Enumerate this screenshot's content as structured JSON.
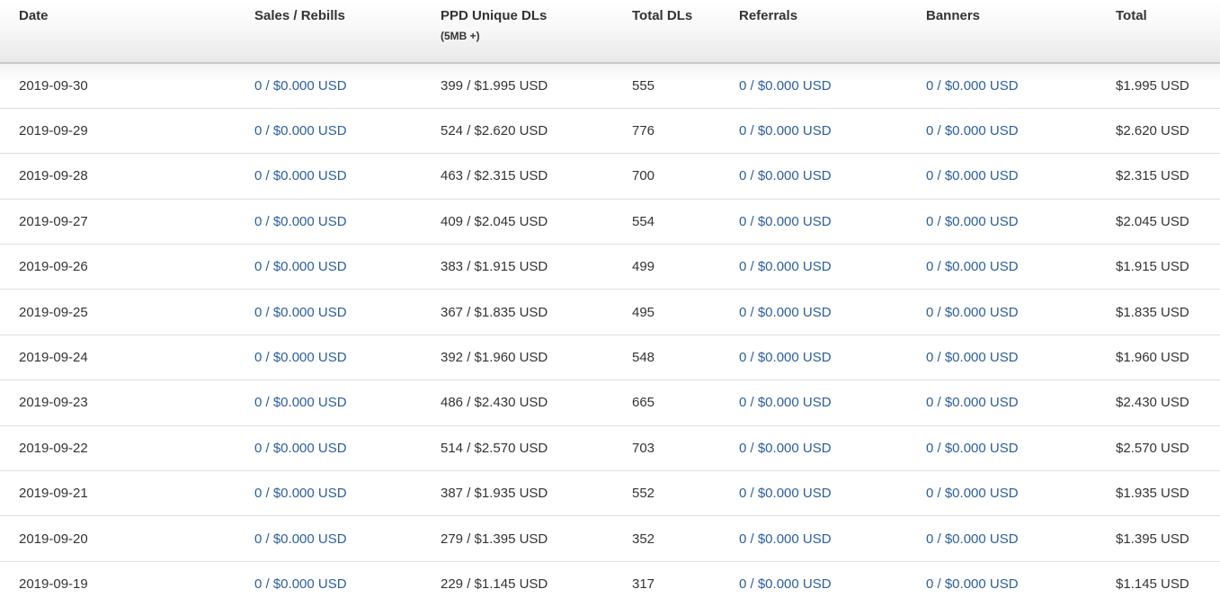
{
  "colors": {
    "link_blue": "#2d5f96",
    "text_dark": "#333333",
    "header_border": "#c9c9c9",
    "row_border": "#e0e0e0",
    "header_gradient_bottom": "#e8e8e8"
  },
  "table": {
    "columns": [
      {
        "key": "date",
        "label": "Date"
      },
      {
        "key": "sales_rebills",
        "label": "Sales / Rebills"
      },
      {
        "key": "ppd_unique_dls",
        "label": "PPD Unique DLs",
        "sublabel": "(5MB +)"
      },
      {
        "key": "total_dls",
        "label": "Total DLs"
      },
      {
        "key": "referrals",
        "label": "Referrals"
      },
      {
        "key": "banners",
        "label": "Banners"
      },
      {
        "key": "total",
        "label": "Total"
      }
    ],
    "rows": [
      {
        "date": "2019-09-30",
        "sales_rebills": "0 / $0.000 USD",
        "ppd_unique_dls": "399 / $1.995 USD",
        "total_dls": "555",
        "referrals": "0 / $0.000 USD",
        "banners": "0 / $0.000 USD",
        "total": "$1.995 USD"
      },
      {
        "date": "2019-09-29",
        "sales_rebills": "0 / $0.000 USD",
        "ppd_unique_dls": "524 / $2.620 USD",
        "total_dls": "776",
        "referrals": "0 / $0.000 USD",
        "banners": "0 / $0.000 USD",
        "total": "$2.620 USD"
      },
      {
        "date": "2019-09-28",
        "sales_rebills": "0 / $0.000 USD",
        "ppd_unique_dls": "463 / $2.315 USD",
        "total_dls": "700",
        "referrals": "0 / $0.000 USD",
        "banners": "0 / $0.000 USD",
        "total": "$2.315 USD"
      },
      {
        "date": "2019-09-27",
        "sales_rebills": "0 / $0.000 USD",
        "ppd_unique_dls": "409 / $2.045 USD",
        "total_dls": "554",
        "referrals": "0 / $0.000 USD",
        "banners": "0 / $0.000 USD",
        "total": "$2.045 USD"
      },
      {
        "date": "2019-09-26",
        "sales_rebills": "0 / $0.000 USD",
        "ppd_unique_dls": "383 / $1.915 USD",
        "total_dls": "499",
        "referrals": "0 / $0.000 USD",
        "banners": "0 / $0.000 USD",
        "total": "$1.915 USD"
      },
      {
        "date": "2019-09-25",
        "sales_rebills": "0 / $0.000 USD",
        "ppd_unique_dls": "367 / $1.835 USD",
        "total_dls": "495",
        "referrals": "0 / $0.000 USD",
        "banners": "0 / $0.000 USD",
        "total": "$1.835 USD"
      },
      {
        "date": "2019-09-24",
        "sales_rebills": "0 / $0.000 USD",
        "ppd_unique_dls": "392 / $1.960 USD",
        "total_dls": "548",
        "referrals": "0 / $0.000 USD",
        "banners": "0 / $0.000 USD",
        "total": "$1.960 USD"
      },
      {
        "date": "2019-09-23",
        "sales_rebills": "0 / $0.000 USD",
        "ppd_unique_dls": "486 / $2.430 USD",
        "total_dls": "665",
        "referrals": "0 / $0.000 USD",
        "banners": "0 / $0.000 USD",
        "total": "$2.430 USD"
      },
      {
        "date": "2019-09-22",
        "sales_rebills": "0 / $0.000 USD",
        "ppd_unique_dls": "514 / $2.570 USD",
        "total_dls": "703",
        "referrals": "0 / $0.000 USD",
        "banners": "0 / $0.000 USD",
        "total": "$2.570 USD"
      },
      {
        "date": "2019-09-21",
        "sales_rebills": "0 / $0.000 USD",
        "ppd_unique_dls": "387 / $1.935 USD",
        "total_dls": "552",
        "referrals": "0 / $0.000 USD",
        "banners": "0 / $0.000 USD",
        "total": "$1.935 USD"
      },
      {
        "date": "2019-09-20",
        "sales_rebills": "0 / $0.000 USD",
        "ppd_unique_dls": "279 / $1.395 USD",
        "total_dls": "352",
        "referrals": "0 / $0.000 USD",
        "banners": "0 / $0.000 USD",
        "total": "$1.395 USD"
      },
      {
        "date": "2019-09-19",
        "sales_rebills": "0 / $0.000 USD",
        "ppd_unique_dls": "229 / $1.145 USD",
        "total_dls": "317",
        "referrals": "0 / $0.000 USD",
        "banners": "0 / $0.000 USD",
        "total": "$1.145 USD"
      }
    ]
  }
}
